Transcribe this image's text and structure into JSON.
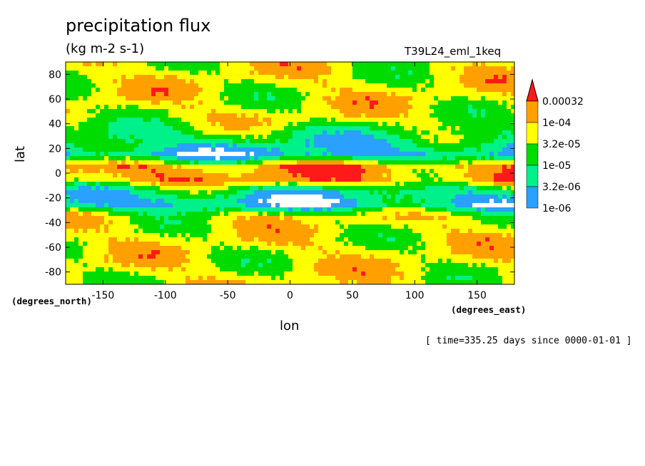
{
  "chart_data": {
    "type": "heatmap",
    "title": "precipitation flux",
    "units": "(kg m-2 s-1)",
    "experiment": "T39L24_eml_1keq",
    "xlabel": "lon",
    "ylabel": "lat",
    "x_units_label": "(degrees_east)",
    "y_units_label": "(degrees_north)",
    "time_label": "[ time=335.25 days since 0000-01-01 ]",
    "xlim": [
      -180,
      180
    ],
    "ylim": [
      -90,
      90
    ],
    "x_ticks": [
      "-150",
      "-100",
      "-50",
      "0",
      "50",
      "100",
      "150"
    ],
    "y_ticks": [
      "80",
      "60",
      "40",
      "20",
      "0",
      "-20",
      "-40",
      "-60",
      "-80"
    ],
    "levels": [
      "1e-06",
      "3.2e-06",
      "1e-05",
      "3.2e-05",
      "1e-04",
      "0.00032"
    ],
    "level_colors": [
      "#2aa1ff",
      "#00f08a",
      "#00dc00",
      "#ffff00",
      "#ffa000",
      "#ff1a1a"
    ],
    "below_color": "#ffffff",
    "zonal_mean_band_by_lat": [
      {
        "lat": 85,
        "band": 3
      },
      {
        "lat": 75,
        "band": 3
      },
      {
        "lat": 65,
        "band": 3
      },
      {
        "lat": 55,
        "band": 3
      },
      {
        "lat": 45,
        "band": 3
      },
      {
        "lat": 35,
        "band": 2
      },
      {
        "lat": 25,
        "band": 1
      },
      {
        "lat": 15,
        "band": 0
      },
      {
        "lat": 5,
        "band": 4
      },
      {
        "lat": 0,
        "band": 4
      },
      {
        "lat": -5,
        "band": 4
      },
      {
        "lat": -15,
        "band": 1
      },
      {
        "lat": -25,
        "band": 0
      },
      {
        "lat": -35,
        "band": 3
      },
      {
        "lat": -45,
        "band": 3
      },
      {
        "lat": -55,
        "band": 3
      },
      {
        "lat": -65,
        "band": 3
      },
      {
        "lat": -75,
        "band": 3
      },
      {
        "lat": -85,
        "band": 3
      }
    ],
    "grid": false,
    "legend": "right"
  }
}
